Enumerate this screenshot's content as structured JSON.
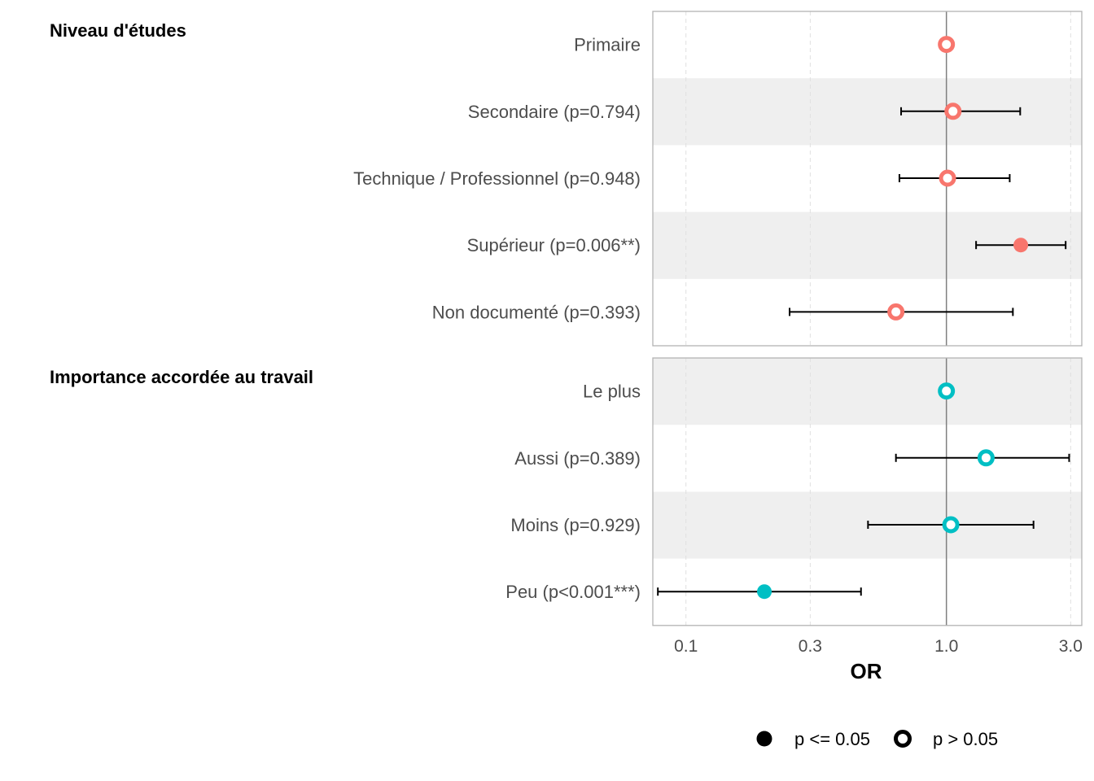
{
  "chart_data": {
    "type": "forest",
    "xlabel": "OR",
    "x_scale": "log",
    "xlim": [
      0.0746,
      3.31
    ],
    "x_ticks": [
      0.1,
      0.3,
      1.0,
      3.0
    ],
    "x_tick_labels": [
      "0.1",
      "0.3",
      "1.0",
      "3.0"
    ],
    "reference_line": 1.0,
    "groups": [
      {
        "title": "Niveau d'études",
        "color": "#F8766D",
        "rows": [
          {
            "label": "Primaire",
            "or": 1.0,
            "ci_low": null,
            "ci_high": null,
            "significant": false,
            "shaded": false
          },
          {
            "label": "Secondaire (p=0.794)",
            "or": 1.06,
            "ci_low": 0.67,
            "ci_high": 1.92,
            "significant": false,
            "shaded": true
          },
          {
            "label": "Technique / Professionnel (p=0.948)",
            "or": 1.01,
            "ci_low": 0.66,
            "ci_high": 1.75,
            "significant": false,
            "shaded": false
          },
          {
            "label": "Supérieur (p=0.006**)",
            "or": 1.93,
            "ci_low": 1.3,
            "ci_high": 2.87,
            "significant": true,
            "shaded": true
          },
          {
            "label": "Non documenté (p=0.393)",
            "or": 0.64,
            "ci_low": 0.25,
            "ci_high": 1.8,
            "significant": false,
            "shaded": false
          }
        ]
      },
      {
        "title": "Importance accordée au travail",
        "color": "#00BFC4",
        "rows": [
          {
            "label": "Le plus",
            "or": 1.0,
            "ci_low": null,
            "ci_high": null,
            "significant": false,
            "shaded": true
          },
          {
            "label": "Aussi (p=0.389)",
            "or": 1.42,
            "ci_low": 0.64,
            "ci_high": 2.96,
            "significant": false,
            "shaded": false
          },
          {
            "label": "Moins (p=0.929)",
            "or": 1.04,
            "ci_low": 0.5,
            "ci_high": 2.16,
            "significant": false,
            "shaded": true
          },
          {
            "label": "Peu (p<0.001***)",
            "or": 0.2,
            "ci_low": 0.078,
            "ci_high": 0.47,
            "significant": true,
            "shaded": false
          }
        ]
      }
    ],
    "legend": {
      "position": "bottom",
      "items": [
        {
          "label": "p <= 0.05",
          "filled": true
        },
        {
          "label": "p > 0.05",
          "filled": false
        }
      ]
    },
    "colors": {
      "row_shade": "#EFEFEF",
      "panel_border": "#B3B3B3",
      "grid": "#E0E0E0",
      "ref_line": "#7F7F7F"
    }
  }
}
